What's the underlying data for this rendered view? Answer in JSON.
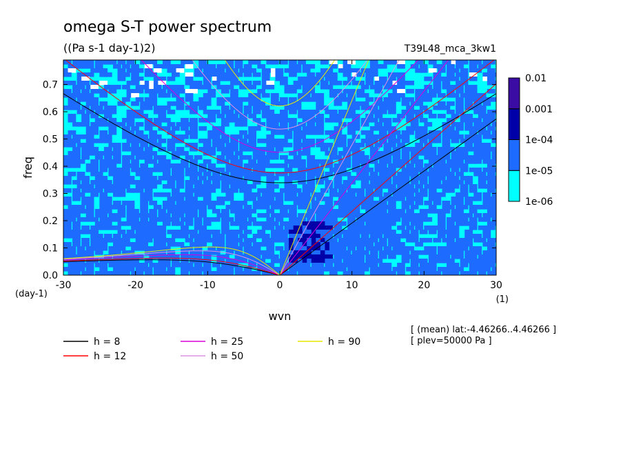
{
  "header": {
    "title": "omega S-T power spectrum",
    "subtitle": "((Pa s-1 day-1)2)",
    "run_label": "T39L48_mca_3kw1"
  },
  "axes": {
    "xlabel": "wvn",
    "ylabel": "freq",
    "x_unit": "(1)",
    "y_unit": "(day-1)"
  },
  "notes": {
    "line1": "[ (mean) lat:-4.46266..4.46266 ]",
    "line2": "[ plev=50000 Pa ]"
  },
  "colorbar": {
    "levels": [
      "1e-06",
      "1e-05",
      "1e-04",
      "0.001",
      "0.01"
    ],
    "colors": [
      "#00ffff",
      "#1e6cff",
      "#0000a8",
      "#3a0ca3"
    ]
  },
  "chart_data": {
    "type": "heatmap",
    "title": "omega S-T power spectrum",
    "subtitle": "((Pa s-1 day-1)2)",
    "xlabel": "wvn",
    "ylabel": "freq",
    "xlim": [
      -30,
      30
    ],
    "ylim": [
      0,
      0.79
    ],
    "x_ticks": [
      "-30",
      "-20",
      "-10",
      "0",
      "10",
      "20",
      "30"
    ],
    "y_ticks": [
      "0.0",
      "0.1",
      "0.2",
      "0.3",
      "0.4",
      "0.5",
      "0.6",
      "0.7"
    ],
    "x_tick_values": [
      -30,
      -20,
      -10,
      0,
      10,
      20,
      30
    ],
    "y_tick_values": [
      0,
      0.1,
      0.2,
      0.3,
      0.4,
      0.5,
      0.6,
      0.7
    ],
    "series": [
      {
        "name": "h =  8",
        "h": 8,
        "color": "#000000"
      },
      {
        "name": "h = 12",
        "h": 12,
        "color": "#ff0000"
      },
      {
        "name": "h = 25",
        "h": 25,
        "color": "#d800d8"
      },
      {
        "name": "h = 50",
        "h": 50,
        "color": "#e090e0"
      },
      {
        "name": "h = 90",
        "h": 90,
        "color": "#e8e800"
      }
    ],
    "colorbar_levels": [
      "1e-06",
      "1e-05",
      "1e-04",
      "0.001",
      "0.01"
    ]
  }
}
